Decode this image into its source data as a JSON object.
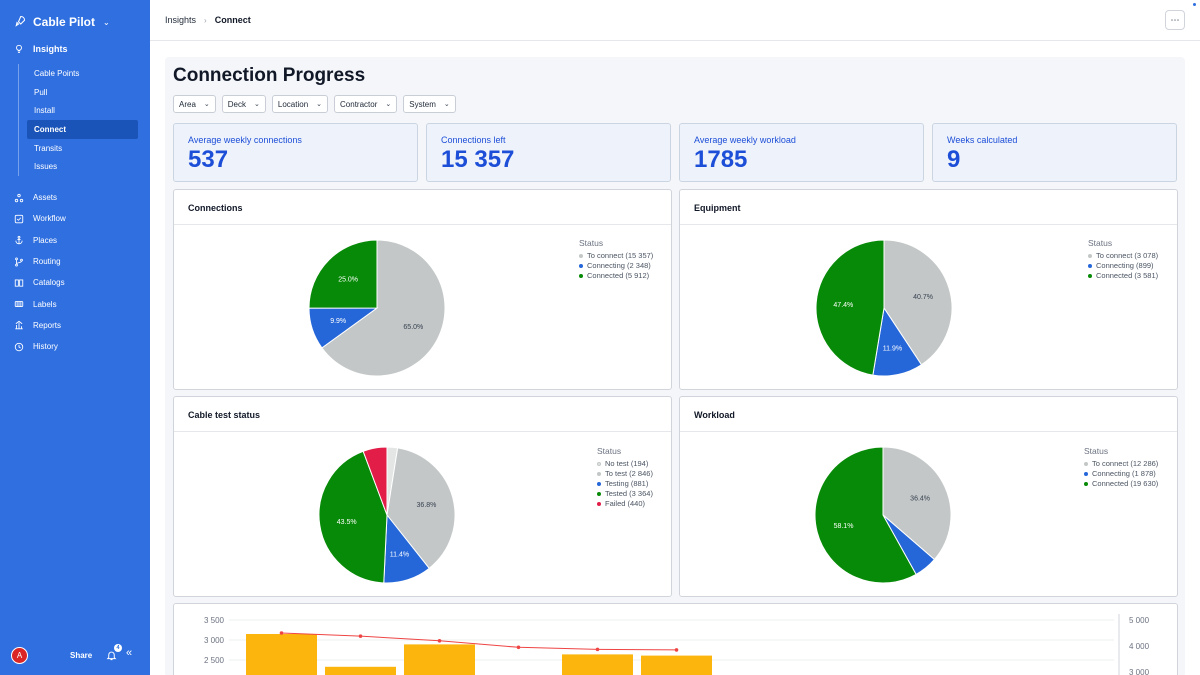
{
  "app": {
    "name": "Cable Pilot"
  },
  "sidebar": {
    "group": "Insights",
    "subitems": [
      "Cable Points",
      "Pull",
      "Install",
      "Connect",
      "Transits",
      "Issues"
    ],
    "active_subitem": "Connect",
    "items": [
      {
        "label": "Assets",
        "icon": "assets-icon"
      },
      {
        "label": "Workflow",
        "icon": "workflow-icon"
      },
      {
        "label": "Places",
        "icon": "anchor-icon"
      },
      {
        "label": "Routing",
        "icon": "routing-icon"
      },
      {
        "label": "Catalogs",
        "icon": "catalog-icon"
      },
      {
        "label": "Labels",
        "icon": "labels-icon"
      },
      {
        "label": "Reports",
        "icon": "reports-icon"
      },
      {
        "label": "History",
        "icon": "history-icon"
      }
    ],
    "avatar": "A",
    "share": "Share",
    "notifications": "4"
  },
  "breadcrumb": {
    "parent": "Insights",
    "current": "Connect"
  },
  "page": {
    "title": "Connection Progress",
    "filters": [
      "Area",
      "Deck",
      "Location",
      "Contractor",
      "System"
    ]
  },
  "kpis": [
    {
      "label": "Average weekly connections",
      "value": "537"
    },
    {
      "label": "Connections left",
      "value": "15 357"
    },
    {
      "label": "Average weekly workload",
      "value": "1785"
    },
    {
      "label": "Weeks calculated",
      "value": "9"
    }
  ],
  "colors": {
    "accent": "#2f6fe0",
    "gray": "#c3c7c7",
    "blue": "#2567d9",
    "green": "#078a07",
    "red": "#e11d48",
    "lightgray": "#e4e6e6",
    "bar": "#fbb50c",
    "line": "#ef4444"
  },
  "chart_data": [
    {
      "type": "pie",
      "title": "Connections",
      "legend_title": "Status",
      "legend": [
        "To connect (15 357)",
        "Connecting (2 348)",
        "Connected (5 912)"
      ],
      "categories": [
        "To connect",
        "Connecting",
        "Connected"
      ],
      "values": [
        15357,
        2348,
        5912
      ],
      "labels": [
        "65.0%",
        "9.9%",
        "25.0%"
      ],
      "colors": [
        "#c3c7c7",
        "#2567d9",
        "#078a07"
      ]
    },
    {
      "type": "pie",
      "title": "Equipment",
      "legend_title": "Status",
      "legend": [
        "To connect (3 078)",
        "Connecting (899)",
        "Connected (3 581)"
      ],
      "categories": [
        "To connect",
        "Connecting",
        "Connected"
      ],
      "values": [
        3078,
        899,
        3581
      ],
      "labels": [
        "40.7%",
        "11.9%",
        "47.4%"
      ],
      "colors": [
        "#c3c7c7",
        "#2567d9",
        "#078a07"
      ]
    },
    {
      "type": "pie",
      "title": "Cable test status",
      "legend_title": "Status",
      "legend": [
        "No test (194)",
        "To test (2 846)",
        "Testing (881)",
        "Tested (3 364)",
        "Failed (440)"
      ],
      "categories": [
        "No test",
        "To test",
        "Testing",
        "Tested",
        "Failed"
      ],
      "values": [
        194,
        2846,
        881,
        3364,
        440
      ],
      "labels": [
        "",
        "36.8%",
        "11.4%",
        "43.5%",
        ""
      ],
      "colors": [
        "#e4e6e6",
        "#c3c7c7",
        "#2567d9",
        "#078a07",
        "#e11d48"
      ]
    },
    {
      "type": "pie",
      "title": "Workload",
      "legend_title": "Status",
      "legend": [
        "To connect (12 286)",
        "Connecting (1 878)",
        "Connected (19 630)"
      ],
      "categories": [
        "To connect",
        "Connecting",
        "Connected"
      ],
      "values": [
        12286,
        1878,
        19630
      ],
      "labels": [
        "36.4%",
        "",
        "58.1%"
      ],
      "colors": [
        "#c3c7c7",
        "#2567d9",
        "#078a07"
      ]
    },
    {
      "type": "bar",
      "left_ticks": [
        "3 500",
        "3 000",
        "2 500"
      ],
      "right_ticks": [
        "5 000",
        "4 000",
        "3 000"
      ],
      "ylim": [
        2000,
        3500
      ],
      "y2lim": [
        2000,
        5000
      ],
      "bars": [
        3150,
        2330,
        2890,
        0,
        2640,
        2610,
        0,
        0,
        0,
        2020
      ],
      "line": [
        4500,
        4380,
        4200,
        3950,
        3870,
        3850
      ]
    }
  ]
}
